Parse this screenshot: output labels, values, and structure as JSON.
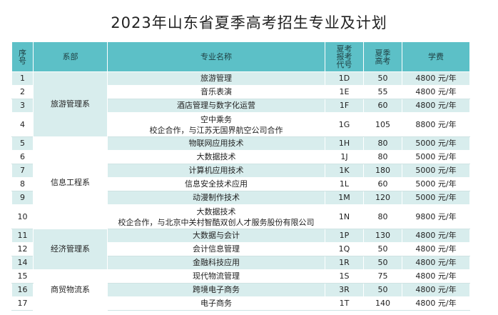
{
  "title": "2023年山东省夏季高考招生专业及计划",
  "headers": {
    "seq": "序号",
    "dept": "系部",
    "major": "专业名称",
    "code": "夏考报考代号",
    "plan": "夏季高考",
    "fee": "学费"
  },
  "departments": [
    {
      "name": "旅游管理系"
    },
    {
      "name": "信息工程系"
    },
    {
      "name": "经济管理系"
    },
    {
      "name": "商贸物流系"
    }
  ],
  "rows": [
    {
      "seq": "1",
      "major": "旅游管理",
      "sub": "",
      "code": "1D",
      "plan": "50",
      "fee": "4800 元/年"
    },
    {
      "seq": "2",
      "major": "音乐表演",
      "sub": "",
      "code": "1E",
      "plan": "55",
      "fee": "4800 元/年"
    },
    {
      "seq": "3",
      "major": "酒店管理与数字化运营",
      "sub": "",
      "code": "1F",
      "plan": "60",
      "fee": "4800 元/年"
    },
    {
      "seq": "4",
      "major": "空中乘务",
      "sub": "校企合作，与江苏无国界航空公司合作",
      "code": "1G",
      "plan": "105",
      "fee": "8800 元/年"
    },
    {
      "seq": "5",
      "major": "物联网应用技术",
      "sub": "",
      "code": "1H",
      "plan": "80",
      "fee": "5000 元/年"
    },
    {
      "seq": "6",
      "major": "大数据技术",
      "sub": "",
      "code": "1J",
      "plan": "80",
      "fee": "5000 元/年"
    },
    {
      "seq": "7",
      "major": "计算机应用技术",
      "sub": "",
      "code": "1K",
      "plan": "180",
      "fee": "5000 元/年"
    },
    {
      "seq": "8",
      "major": "信息安全技术应用",
      "sub": "",
      "code": "1L",
      "plan": "60",
      "fee": "5000 元/年"
    },
    {
      "seq": "9",
      "major": "动漫制作技术",
      "sub": "",
      "code": "1M",
      "plan": "120",
      "fee": "5000 元/年"
    },
    {
      "seq": "10",
      "major": "大数据技术",
      "sub": "校企合作，与北京中关村智酷双创人才服务股份有限公司",
      "code": "1N",
      "plan": "80",
      "fee": "9800 元/年"
    },
    {
      "seq": "11",
      "major": "大数据与会计",
      "sub": "",
      "code": "1P",
      "plan": "130",
      "fee": "4800 元/年"
    },
    {
      "seq": "12",
      "major": "会计信息管理",
      "sub": "",
      "code": "1Q",
      "plan": "50",
      "fee": "4800 元/年"
    },
    {
      "seq": "14",
      "major": "金融科技应用",
      "sub": "",
      "code": "1R",
      "plan": "50",
      "fee": "4800 元/年"
    },
    {
      "seq": "15",
      "major": "现代物流管理",
      "sub": "",
      "code": "1S",
      "plan": "75",
      "fee": "4800 元/年"
    },
    {
      "seq": "16",
      "major": "跨境电子商务",
      "sub": "",
      "code": "3R",
      "plan": "50",
      "fee": "4800 元/年"
    },
    {
      "seq": "17",
      "major": "电子商务",
      "sub": "",
      "code": "1T",
      "plan": "140",
      "fee": "4800 元/年"
    }
  ]
}
